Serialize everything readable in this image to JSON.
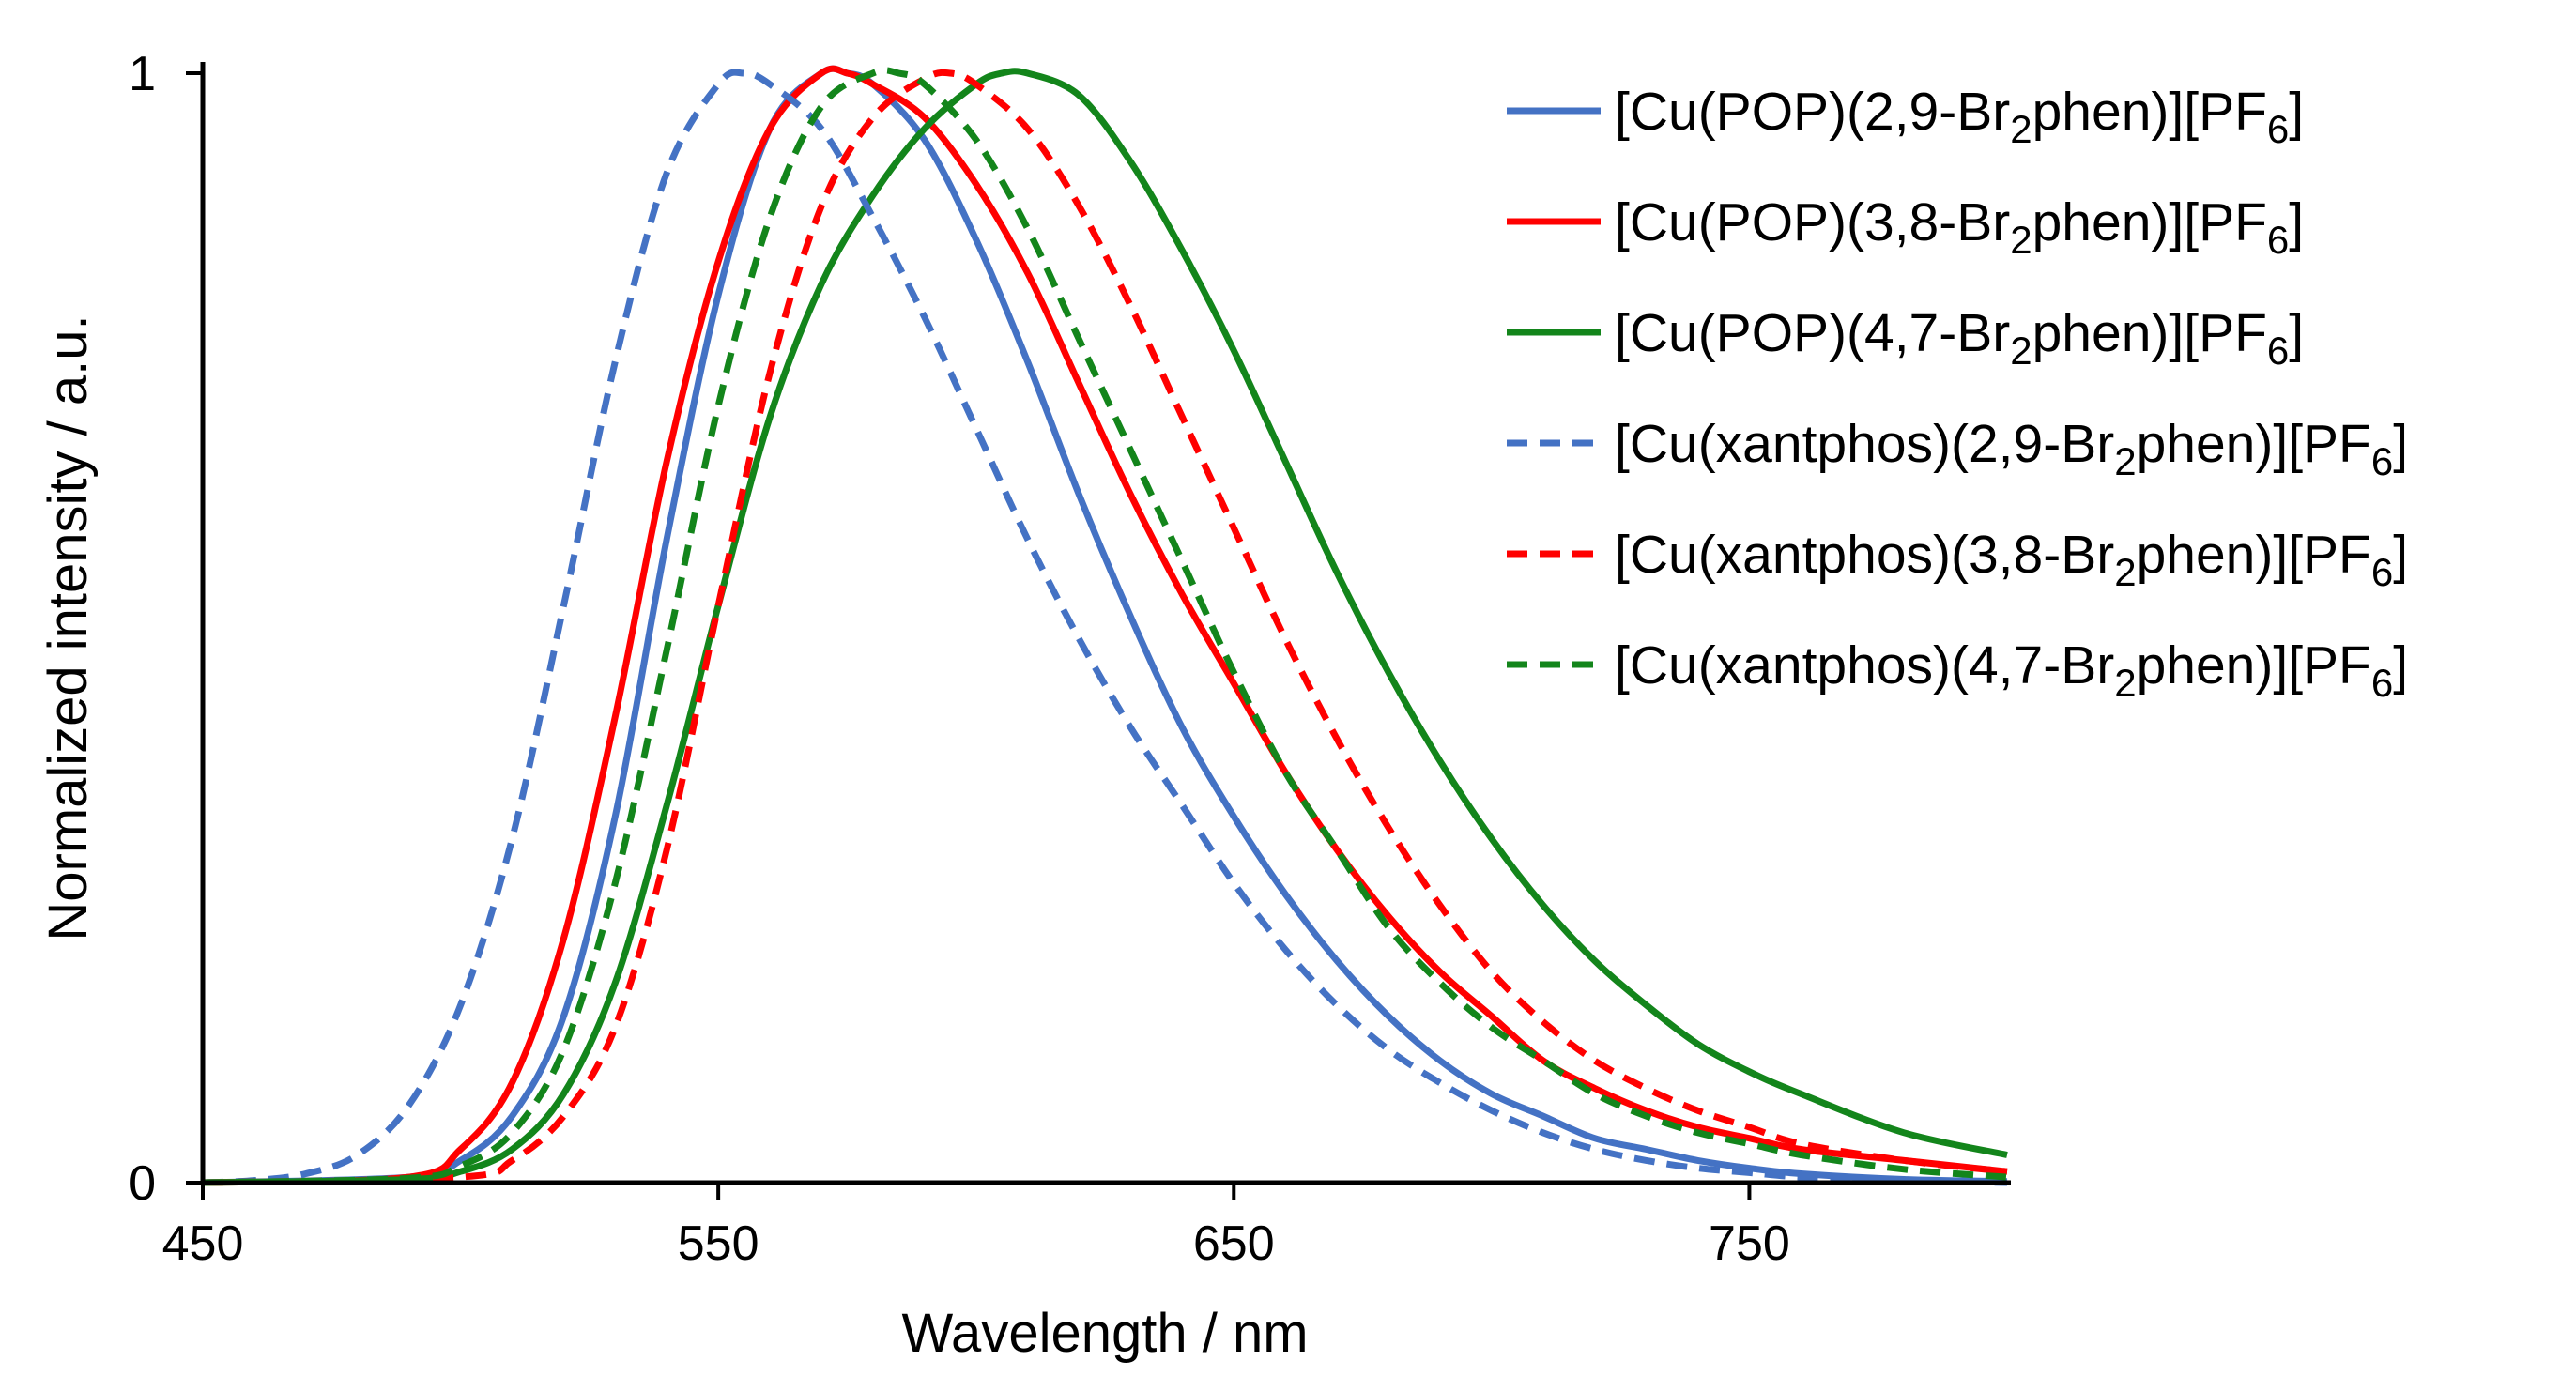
{
  "chart_data": {
    "type": "line",
    "title": "",
    "xlabel": "Wavelength / nm",
    "ylabel": "Normalized intensity / a.u.",
    "xlim": [
      450,
      800
    ],
    "ylim": [
      0,
      1
    ],
    "xticks": [
      "450",
      "550",
      "650",
      "750"
    ],
    "yticks": [
      "0",
      "1"
    ],
    "grid": false,
    "legend_position": "top-right",
    "series": [
      {
        "name": "[Cu(POP)(2,9-Br2phen)][PF6]",
        "legend": {
          "pre": "[Cu(POP)(2,9-Br",
          "sub1": "2",
          "mid": "phen)][PF",
          "sub2": "6",
          "post": "]"
        },
        "color": "#4472C4",
        "dash": "solid",
        "x": [
          450,
          490,
          500,
          510,
          520,
          530,
          540,
          550,
          560,
          570,
          575,
          580,
          590,
          600,
          610,
          620,
          630,
          640,
          650,
          660,
          670,
          680,
          690,
          700,
          710,
          720,
          730,
          740,
          750,
          760,
          780,
          800
        ],
        "y": [
          0,
          0.005,
          0.02,
          0.06,
          0.15,
          0.33,
          0.58,
          0.8,
          0.95,
          1.0,
          1.0,
          0.99,
          0.94,
          0.85,
          0.74,
          0.62,
          0.51,
          0.41,
          0.33,
          0.26,
          0.2,
          0.15,
          0.11,
          0.08,
          0.06,
          0.04,
          0.03,
          0.02,
          0.013,
          0.008,
          0.003,
          0.001
        ]
      },
      {
        "name": "[Cu(POP)(3,8-Br2phen)][PF6]",
        "legend": {
          "pre": "[Cu(POP)(3,8-Br",
          "sub1": "2",
          "mid": "phen)][PF",
          "sub2": "6",
          "post": "]"
        },
        "color": "#FF0000",
        "dash": "solid",
        "x": [
          450,
          490,
          500,
          510,
          520,
          530,
          540,
          550,
          560,
          570,
          575,
          580,
          590,
          600,
          610,
          620,
          630,
          640,
          650,
          660,
          670,
          680,
          690,
          700,
          710,
          720,
          730,
          740,
          750,
          760,
          780,
          800
        ],
        "y": [
          0,
          0.005,
          0.03,
          0.09,
          0.22,
          0.42,
          0.65,
          0.83,
          0.95,
          1.0,
          1.0,
          0.99,
          0.96,
          0.9,
          0.82,
          0.72,
          0.62,
          0.53,
          0.45,
          0.37,
          0.3,
          0.24,
          0.19,
          0.15,
          0.11,
          0.085,
          0.065,
          0.05,
          0.04,
          0.03,
          0.02,
          0.01
        ]
      },
      {
        "name": "[Cu(POP)(4,7-Br2phen)][PF6]",
        "legend": {
          "pre": "[Cu(POP)(4,7-Br",
          "sub1": "2",
          "mid": "phen)][PF",
          "sub2": "6",
          "post": "]"
        },
        "color": "#13851B",
        "dash": "solid",
        "x": [
          450,
          490,
          500,
          510,
          520,
          530,
          540,
          550,
          560,
          570,
          580,
          590,
          600,
          605,
          610,
          620,
          630,
          640,
          650,
          660,
          670,
          680,
          690,
          700,
          710,
          720,
          730,
          740,
          750,
          760,
          780,
          800
        ],
        "y": [
          0,
          0.003,
          0.01,
          0.03,
          0.08,
          0.18,
          0.34,
          0.52,
          0.69,
          0.81,
          0.89,
          0.95,
          0.99,
          1.0,
          1.0,
          0.98,
          0.92,
          0.84,
          0.75,
          0.65,
          0.55,
          0.46,
          0.38,
          0.31,
          0.25,
          0.2,
          0.16,
          0.125,
          0.1,
          0.08,
          0.045,
          0.025
        ]
      },
      {
        "name": "[Cu(xantphos)(2,9-Br2phen)][PF6]",
        "legend": {
          "pre": "[Cu(xantphos)(2,9-Br",
          "sub1": "2",
          "mid": "phen)][PF",
          "sub2": "6",
          "post": "]"
        },
        "color": "#4472C4",
        "dash": "dashed",
        "x": [
          450,
          460,
          470,
          480,
          490,
          500,
          510,
          520,
          530,
          540,
          550,
          555,
          560,
          570,
          580,
          590,
          600,
          610,
          620,
          630,
          640,
          650,
          660,
          670,
          680,
          690,
          700,
          710,
          720,
          730,
          740,
          750,
          760,
          780,
          800
        ],
        "y": [
          0,
          0.002,
          0.008,
          0.025,
          0.07,
          0.16,
          0.31,
          0.52,
          0.74,
          0.91,
          0.99,
          1.0,
          0.99,
          0.95,
          0.87,
          0.78,
          0.68,
          0.58,
          0.49,
          0.41,
          0.34,
          0.27,
          0.21,
          0.16,
          0.12,
          0.09,
          0.065,
          0.045,
          0.03,
          0.02,
          0.013,
          0.009,
          0.005,
          0.002,
          0.0
        ]
      },
      {
        "name": "[Cu(xantphos)(3,8-Br2phen)][PF6]",
        "legend": {
          "pre": "[Cu(xantphos)(3,8-Br",
          "sub1": "2",
          "mid": "phen)][PF",
          "sub2": "6",
          "post": "]"
        },
        "color": "#FF0000",
        "dash": "dashed",
        "x": [
          450,
          500,
          510,
          520,
          530,
          540,
          550,
          560,
          570,
          580,
          590,
          595,
          600,
          610,
          620,
          630,
          640,
          650,
          660,
          670,
          680,
          690,
          700,
          710,
          720,
          730,
          740,
          750,
          760,
          780,
          800
        ],
        "y": [
          0,
          0.005,
          0.02,
          0.06,
          0.14,
          0.3,
          0.52,
          0.73,
          0.88,
          0.96,
          0.995,
          1.0,
          0.99,
          0.95,
          0.88,
          0.79,
          0.69,
          0.59,
          0.49,
          0.4,
          0.32,
          0.25,
          0.19,
          0.145,
          0.11,
          0.085,
          0.065,
          0.05,
          0.035,
          0.02,
          0.01
        ]
      },
      {
        "name": "[Cu(xantphos)(4,7-Br2phen)][PF6]",
        "legend": {
          "pre": "[Cu(xantphos)(4,7-Br",
          "sub1": "2",
          "mid": "phen)][PF",
          "sub2": "6",
          "post": "]"
        },
        "color": "#13851B",
        "dash": "dashed",
        "x": [
          450,
          490,
          500,
          510,
          520,
          530,
          540,
          550,
          560,
          570,
          580,
          585,
          590,
          600,
          610,
          620,
          630,
          640,
          650,
          660,
          670,
          680,
          690,
          700,
          710,
          720,
          730,
          740,
          750,
          760,
          780,
          800
        ],
        "y": [
          0,
          0.004,
          0.015,
          0.045,
          0.12,
          0.27,
          0.48,
          0.7,
          0.87,
          0.97,
          1.0,
          1.0,
          0.99,
          0.94,
          0.86,
          0.76,
          0.66,
          0.56,
          0.46,
          0.37,
          0.3,
          0.23,
          0.18,
          0.14,
          0.11,
          0.08,
          0.06,
          0.045,
          0.035,
          0.025,
          0.012,
          0.005
        ]
      }
    ]
  }
}
